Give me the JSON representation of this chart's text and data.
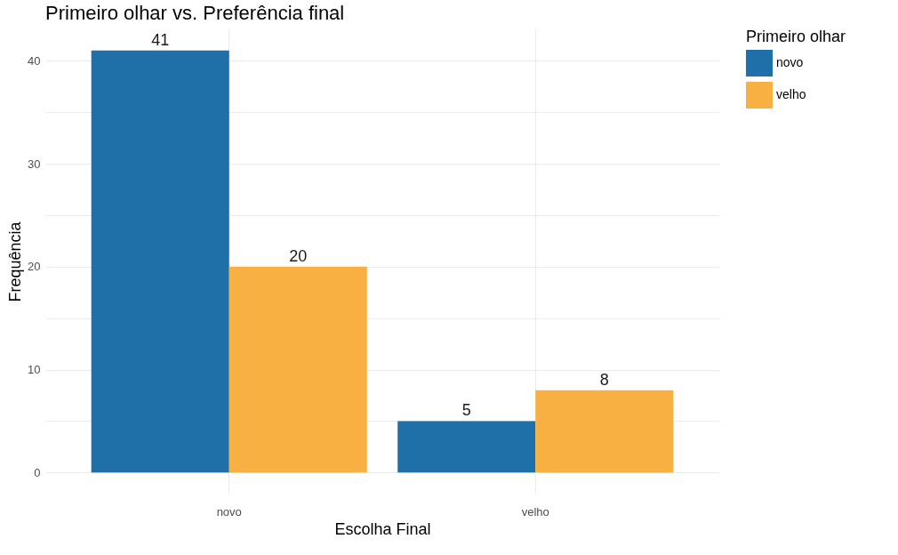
{
  "chart_data": {
    "type": "bar",
    "title": "Primeiro olhar vs. Preferência final",
    "xlabel": "Escolha Final",
    "ylabel": "Frequência",
    "legend_title": "Primeiro olhar",
    "categories": [
      "novo",
      "velho"
    ],
    "series": [
      {
        "name": "novo",
        "color": "#1f6fa8",
        "values": [
          41,
          5
        ]
      },
      {
        "name": "velho",
        "color": "#f9b042",
        "values": [
          20,
          8
        ]
      }
    ],
    "ylim": [
      -2.05,
      43.05
    ],
    "yticks": [
      0,
      {
        "value": 5,
        "label": null
      },
      10,
      {
        "value": 15,
        "label": null
      },
      20,
      {
        "value": 25,
        "label": null
      },
      30,
      {
        "value": 35,
        "label": null
      },
      40
    ],
    "grid": true,
    "legend": "right",
    "data_labels": true
  }
}
